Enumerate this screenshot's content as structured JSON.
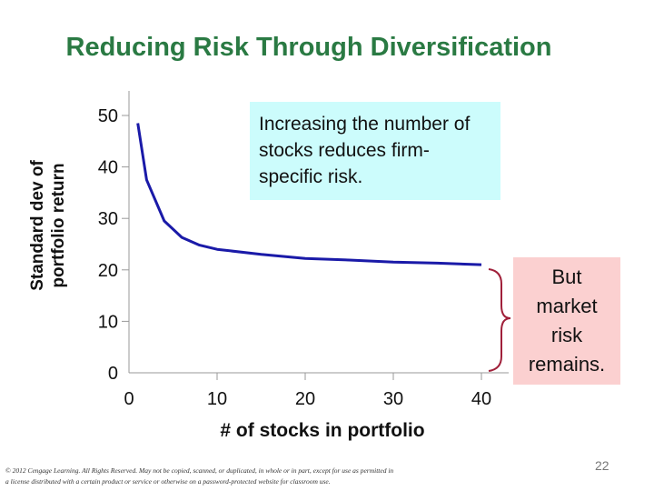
{
  "slide": {
    "title": "Reducing Risk Through Diversification",
    "callout_top": "Increasing the number of stocks reduces firm-specific risk.",
    "callout_right": "But market risk remains.",
    "footer": "© 2012 Cengage Learning. All Rights Reserved. May not be copied, scanned, or duplicated, in whole or in part, except for use as permitted in a license distributed with a certain product or service or otherwise on a password-protected website for classroom use.",
    "page_number": "22"
  },
  "colors": {
    "title": "#2a7a43",
    "line": "#1a1aa8",
    "brace": "#a0203a",
    "callout_top_bg": "#ccfcfc",
    "callout_right_bg": "#fbd0d0"
  },
  "chart_data": {
    "type": "line",
    "title": "",
    "xlabel": "# of stocks in portfolio",
    "ylabel_lines": [
      "Standard dev of",
      "portfolio return"
    ],
    "xlim": [
      0,
      40
    ],
    "ylim": [
      0,
      50
    ],
    "xticks": [
      0,
      10,
      20,
      30,
      40
    ],
    "yticks": [
      0,
      10,
      20,
      30,
      40,
      50
    ],
    "grid": false,
    "series": [
      {
        "x": [
          1,
          2,
          4,
          6,
          8,
          10,
          15,
          20,
          25,
          30,
          35,
          40
        ],
        "y": [
          48.5,
          37.5,
          29.5,
          26.3,
          24.8,
          24.0,
          23.0,
          22.2,
          21.9,
          21.5,
          21.3,
          21.0
        ]
      }
    ]
  }
}
